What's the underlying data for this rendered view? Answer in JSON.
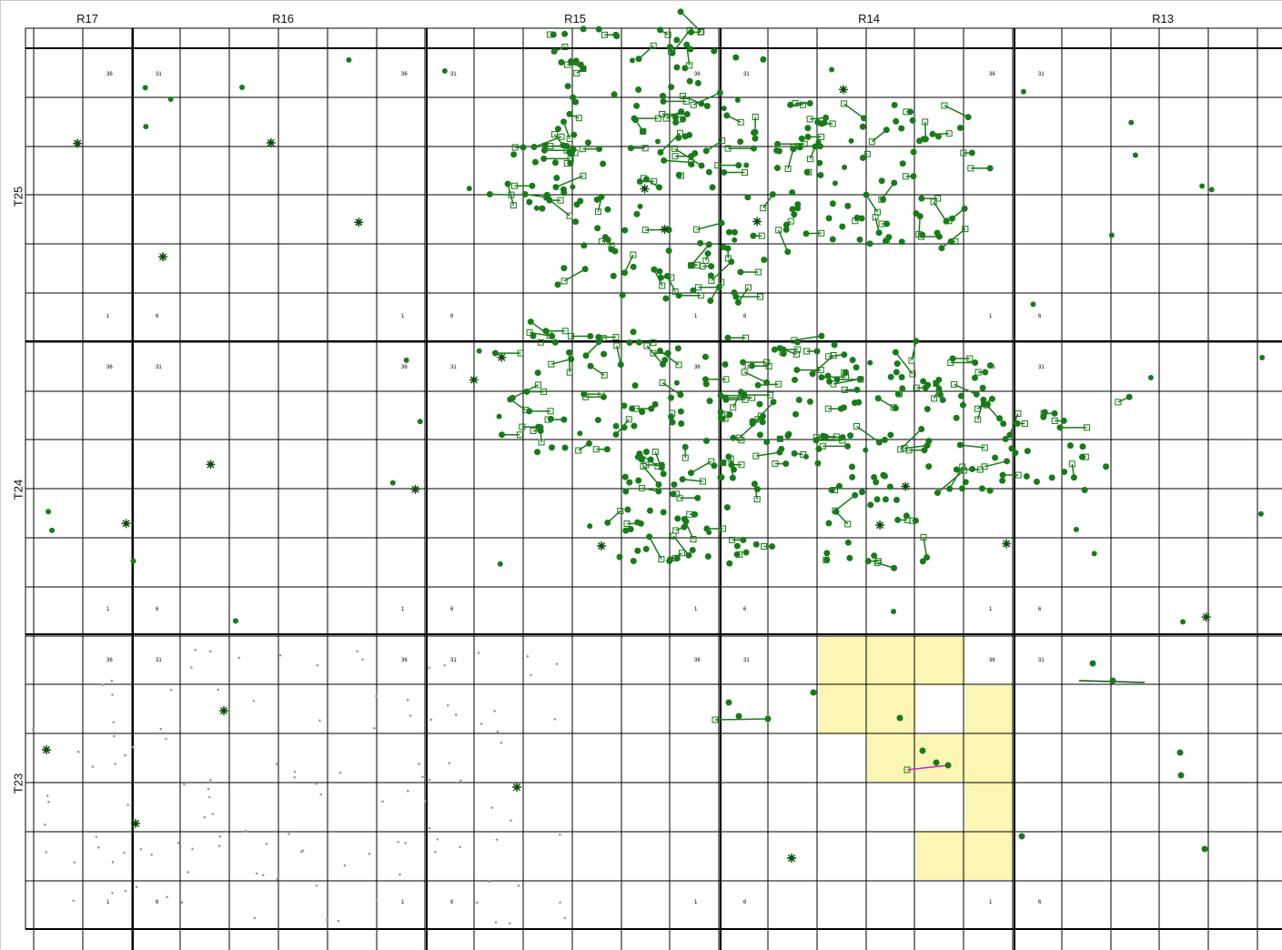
{
  "map": {
    "ranges": [
      {
        "label": "R17"
      },
      {
        "label": "R16"
      },
      {
        "label": "R15"
      },
      {
        "label": "R14"
      },
      {
        "label": "R13"
      }
    ],
    "townships": [
      {
        "label": "T25"
      },
      {
        "label": "T24"
      },
      {
        "label": "T23"
      }
    ],
    "section_numbers": [
      "36",
      "31",
      "1",
      "6"
    ],
    "colors": {
      "grid_line": "#000000",
      "well_green": "#1a7a1a",
      "well_dark": "#0f4d0f",
      "lease_fill": "#fbf6b3",
      "highlight_line": "#cc22cc",
      "dot_grey": "#9a9a9a"
    },
    "symbols": {
      "oil_well": "green-dot-icon",
      "dry_hole": "green-star-icon",
      "directional_well": "green-square-icon"
    }
  }
}
